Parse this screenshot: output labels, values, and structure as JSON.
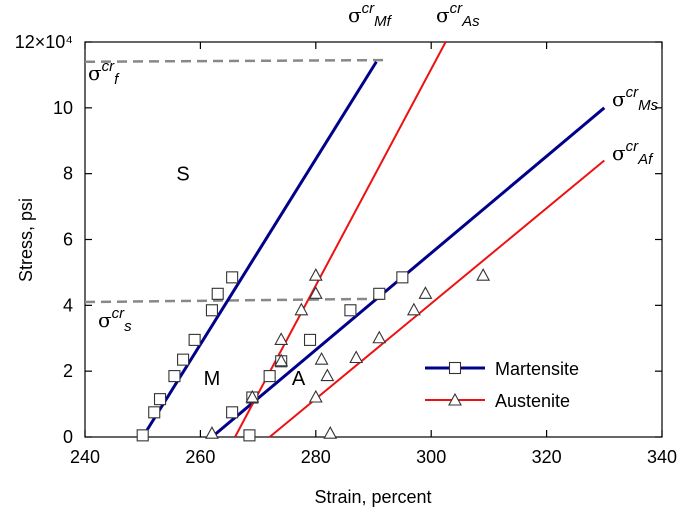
{
  "chart_data": {
    "type": "scatter",
    "xlabel": "Strain, percent",
    "ylabel": "Stress, psi",
    "xlim": [
      240,
      340
    ],
    "ylim": [
      0,
      120000
    ],
    "xticks": [
      240,
      260,
      280,
      300,
      320,
      340
    ],
    "ytick_values": [
      0,
      20000,
      40000,
      60000,
      80000,
      100000,
      120000
    ],
    "ytick_labels": [
      "0",
      "2",
      "4",
      "6",
      "8",
      "10",
      "12×10⁴"
    ],
    "legend_position": "lower-right",
    "grid": false,
    "series": [
      {
        "name": "Martensite",
        "color": "#00008b",
        "marker": "square",
        "points": [
          [
            250,
            500
          ],
          [
            252,
            7500
          ],
          [
            253,
            11500
          ],
          [
            255.5,
            18500
          ],
          [
            257,
            23500
          ],
          [
            259,
            29500
          ],
          [
            262,
            38500
          ],
          [
            263,
            43500
          ],
          [
            265.5,
            48500
          ],
          [
            268.5,
            500
          ],
          [
            265.5,
            7500
          ],
          [
            269,
            12000
          ],
          [
            272,
            18500
          ],
          [
            274,
            23000
          ],
          [
            279,
            29500
          ],
          [
            286,
            38500
          ],
          [
            291,
            43500
          ],
          [
            295,
            48500
          ]
        ]
      },
      {
        "name": "Austenite",
        "color": "#ee1111",
        "marker": "triangle",
        "points": [
          [
            262,
            1000
          ],
          [
            269,
            12000
          ],
          [
            274,
            23000
          ],
          [
            274,
            29500
          ],
          [
            277.5,
            38500
          ],
          [
            280,
            43500
          ],
          [
            280,
            49000
          ],
          [
            280,
            12000
          ],
          [
            282,
            18500
          ],
          [
            281,
            23500
          ],
          [
            282.5,
            1000
          ],
          [
            287,
            24000
          ],
          [
            291,
            30000
          ],
          [
            297,
            38500
          ],
          [
            299,
            43500
          ],
          [
            309,
            49000
          ]
        ]
      }
    ],
    "lines": [
      {
        "id": "sigma-cr-mf",
        "series": "Martensite",
        "color": "#00008b",
        "x": [
          250,
          290.5
        ],
        "y": [
          0,
          114000
        ],
        "label": "σ",
        "sup": "cr",
        "sub": "Mf"
      },
      {
        "id": "sigma-cr-ms",
        "series": "Martensite",
        "color": "#00008b",
        "x": [
          262,
          330
        ],
        "y": [
          0,
          100000
        ],
        "label": "σ",
        "sup": "cr",
        "sub": "Ms"
      },
      {
        "id": "sigma-cr-as",
        "series": "Austenite",
        "color": "#ee1111",
        "x": [
          266,
          302.5
        ],
        "y": [
          0,
          120000
        ],
        "label": "σ",
        "sup": "cr",
        "sub": "As"
      },
      {
        "id": "sigma-cr-af",
        "series": "Austenite",
        "color": "#ee1111",
        "x": [
          272,
          330
        ],
        "y": [
          0,
          84000
        ],
        "label": "σ",
        "sup": "cr",
        "sub": "Af"
      }
    ],
    "dashed_lines": [
      {
        "id": "sigma-cr-f",
        "color": "#888888",
        "x": [
          240,
          292
        ],
        "y": [
          114000,
          114500
        ],
        "label": "σ",
        "sup": "cr",
        "sub": "f"
      },
      {
        "id": "sigma-cr-s",
        "color": "#888888",
        "x": [
          240,
          292
        ],
        "y": [
          41000,
          42000
        ],
        "label": "σ",
        "sup": "cr",
        "sub": "s"
      }
    ],
    "annotations": [
      {
        "id": "region-s",
        "text": "S",
        "x": 257,
        "y": 80000
      },
      {
        "id": "region-m",
        "text": "M",
        "x": 262,
        "y": 18000
      },
      {
        "id": "region-a",
        "text": "A",
        "x": 277,
        "y": 18000
      }
    ]
  }
}
